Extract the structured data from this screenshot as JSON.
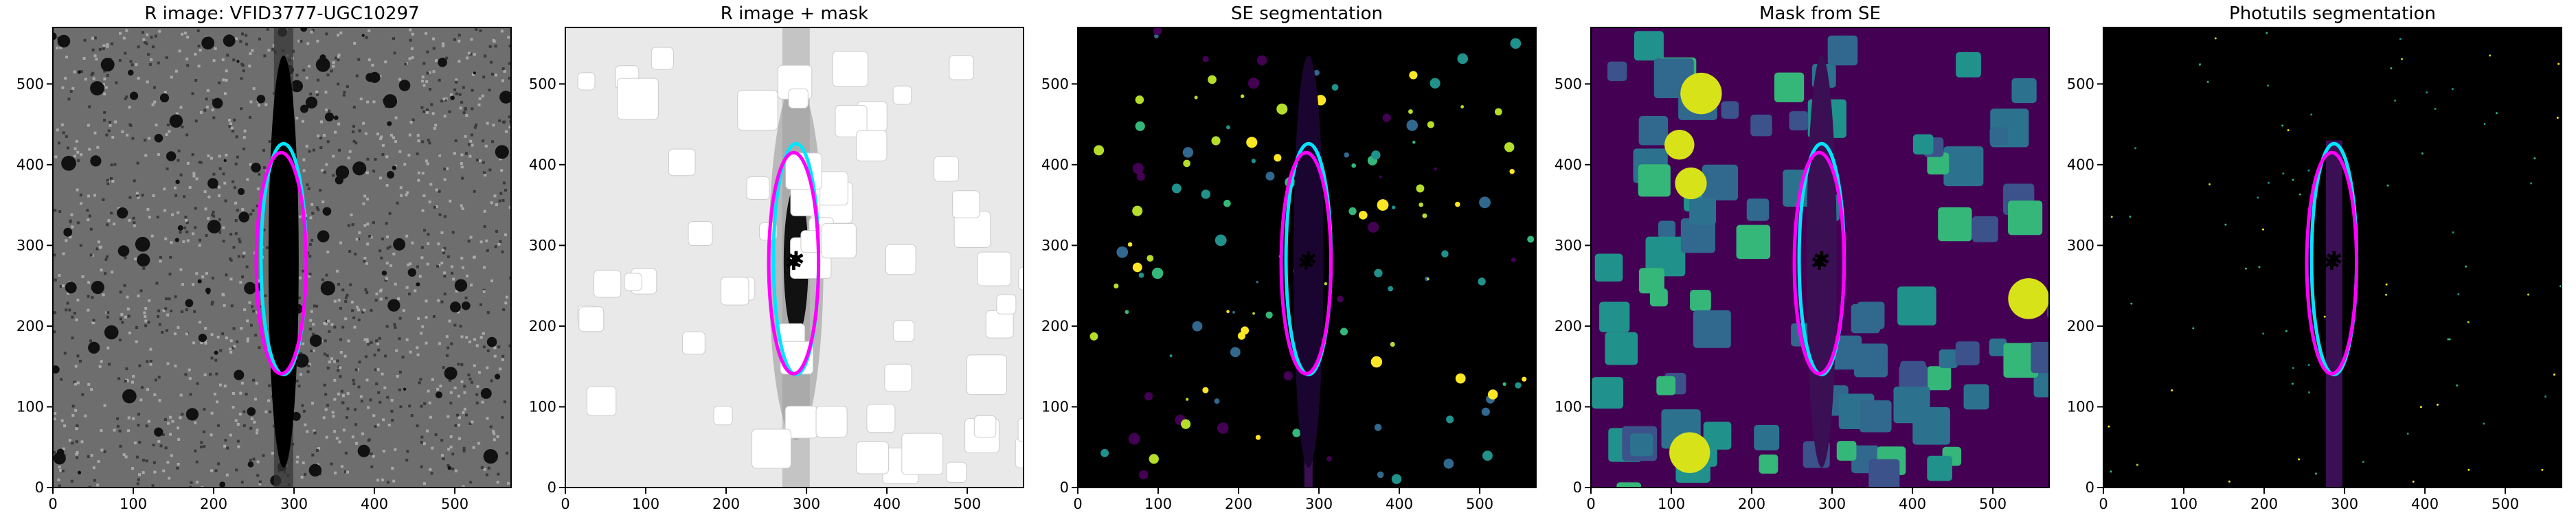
{
  "chart_data": [
    {
      "type": "image",
      "title": "R image: VFID3777-UGC10297",
      "background": "#6e6e6e",
      "style": "noise",
      "xlim": [
        0,
        570
      ],
      "ylim": [
        0,
        570
      ],
      "xticks": [
        0,
        100,
        200,
        300,
        400,
        500
      ],
      "yticks": [
        0,
        100,
        200,
        300,
        400,
        500
      ],
      "ellipses": [
        {
          "color": "#00e5ff",
          "center": [
            287,
            283
          ],
          "axes": [
            28,
            143
          ]
        },
        {
          "color": "#ff00ff",
          "center": [
            284,
            278
          ],
          "axes": [
            31,
            137
          ]
        }
      ]
    },
    {
      "type": "image",
      "title": "R image + mask",
      "background": "#e9e9e9",
      "style": "mask",
      "xlim": [
        0,
        570
      ],
      "ylim": [
        0,
        570
      ],
      "xticks": [
        0,
        100,
        200,
        300,
        400,
        500
      ],
      "yticks": [
        0,
        100,
        200,
        300,
        400,
        500
      ],
      "ellipses": [
        {
          "color": "#00e5ff",
          "center": [
            287,
            283
          ],
          "axes": [
            28,
            143
          ]
        },
        {
          "color": "#ff00ff",
          "center": [
            284,
            278
          ],
          "axes": [
            31,
            137
          ]
        }
      ]
    },
    {
      "type": "image",
      "title": "SE segmentation",
      "background": "#000000",
      "style": "seg",
      "xlim": [
        0,
        570
      ],
      "ylim": [
        0,
        570
      ],
      "xticks": [
        0,
        100,
        200,
        300,
        400,
        500
      ],
      "yticks": [
        0,
        100,
        200,
        300,
        400,
        500
      ],
      "ellipses": [
        {
          "color": "#00e5ff",
          "center": [
            287,
            283
          ],
          "axes": [
            28,
            143
          ]
        },
        {
          "color": "#ff00ff",
          "center": [
            284,
            278
          ],
          "axes": [
            31,
            137
          ]
        }
      ]
    },
    {
      "type": "image",
      "title": "Mask from SE",
      "background": "#440154",
      "style": "semask",
      "xlim": [
        0,
        570
      ],
      "ylim": [
        0,
        570
      ],
      "xticks": [
        0,
        100,
        200,
        300,
        400,
        500
      ],
      "yticks": [
        0,
        100,
        200,
        300,
        400,
        500
      ],
      "ellipses": [
        {
          "color": "#00e5ff",
          "center": [
            287,
            283
          ],
          "axes": [
            28,
            143
          ]
        },
        {
          "color": "#ff00ff",
          "center": [
            284,
            278
          ],
          "axes": [
            31,
            137
          ]
        }
      ]
    },
    {
      "type": "image",
      "title": "Photutils segmentation",
      "background": "#000000",
      "style": "phot",
      "xlim": [
        0,
        570
      ],
      "ylim": [
        0,
        570
      ],
      "xticks": [
        0,
        100,
        200,
        300,
        400,
        500
      ],
      "yticks": [
        0,
        100,
        200,
        300,
        400,
        500
      ],
      "ellipses": [
        {
          "color": "#00e5ff",
          "center": [
            287,
            283
          ],
          "axes": [
            28,
            143
          ]
        },
        {
          "color": "#ff00ff",
          "center": [
            284,
            278
          ],
          "axes": [
            31,
            137
          ]
        }
      ]
    }
  ]
}
